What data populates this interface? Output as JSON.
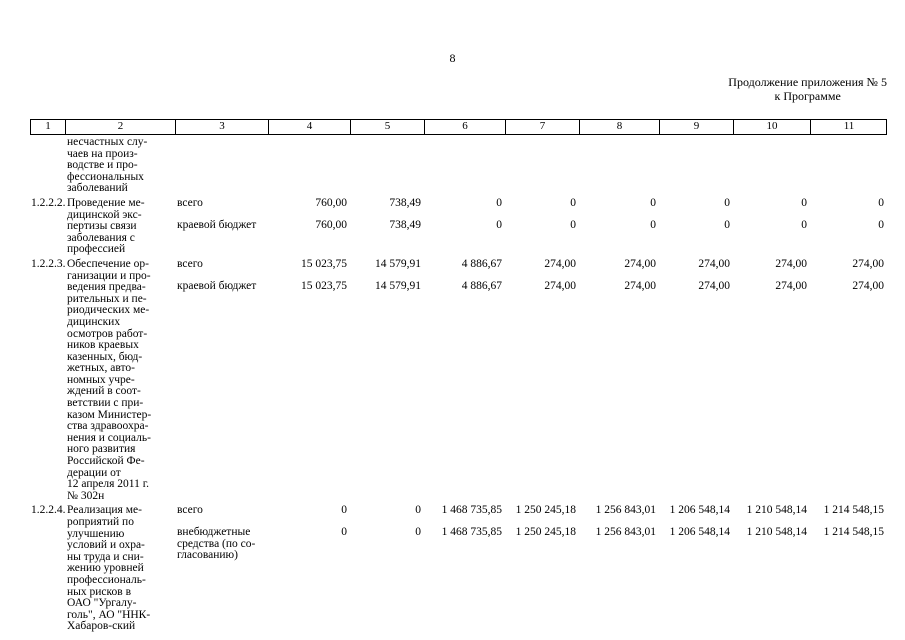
{
  "page": {
    "number": "8",
    "continuation_line1": "Продолжение приложения № 5",
    "continuation_line2": "к Программе"
  },
  "table": {
    "header": [
      "1",
      "2",
      "3",
      "4",
      "5",
      "6",
      "7",
      "8",
      "9",
      "10",
      "11"
    ],
    "rows": [
      {
        "num": "",
        "name": "несчастных слу-\nчаев на произ-\nводстве и про-\nфессиональных\nзаболеваний",
        "sub": []
      },
      {
        "num": "1.2.2.2.",
        "name": "Проведение ме-\nдицинской экс-\nпертизы связи\nзаболевания с\nпрофессией",
        "sub": [
          {
            "source": "всего",
            "values": [
              "760,00",
              "738,49",
              "0",
              "0",
              "0",
              "0",
              "0",
              "0"
            ]
          },
          {
            "source": "краевой бюджет",
            "values": [
              "760,00",
              "738,49",
              "0",
              "0",
              "0",
              "0",
              "0",
              "0"
            ]
          }
        ]
      },
      {
        "num": "1.2.2.3.",
        "name": "Обеспечение ор-\nганизации и про-\nведения предва-\nрительных и пе-\nриодических ме-\nдицинских\nосмотров работ-\nников краевых\nказенных, бюд-\nжетных, авто-\nномных учре-\nждений в соот-\nветствии с при-\nказом Министер-\nства здравоохра-\nнения и социаль-\nного развития\nРоссийской Фе-\nдерации от\n12 апреля 2011 г.\n№ 302н",
        "sub": [
          {
            "source": "всего",
            "values": [
              "15 023,75",
              "14 579,91",
              "4 886,67",
              "274,00",
              "274,00",
              "274,00",
              "274,00",
              "274,00"
            ]
          },
          {
            "source": "краевой бюджет",
            "values": [
              "15 023,75",
              "14 579,91",
              "4 886,67",
              "274,00",
              "274,00",
              "274,00",
              "274,00",
              "274,00"
            ]
          }
        ]
      },
      {
        "num": "1.2.2.4.",
        "name": "Реализация ме-\nроприятий по\nулучшению\nусловий и охра-\nны труда и сни-\nжению уровней\nпрофессиональ-\nных рисков в\nОАО \"Ургалу-\nголь\", АО \"ННК-\nХабаров-ский",
        "sub": [
          {
            "source": "всего",
            "values": [
              "0",
              "0",
              "1 468 735,85",
              "1 250 245,18",
              "1 256 843,01",
              "1 206 548,14",
              "1 210 548,14",
              "1 214 548,15"
            ]
          },
          {
            "source": "внебюджетные\nсредства (по со-\nгласованию)",
            "values": [
              "0",
              "0",
              "1 468 735,85",
              "1 250 245,18",
              "1 256 843,01",
              "1 206 548,14",
              "1 210 548,14",
              "1 214 548,15"
            ]
          }
        ]
      }
    ]
  }
}
